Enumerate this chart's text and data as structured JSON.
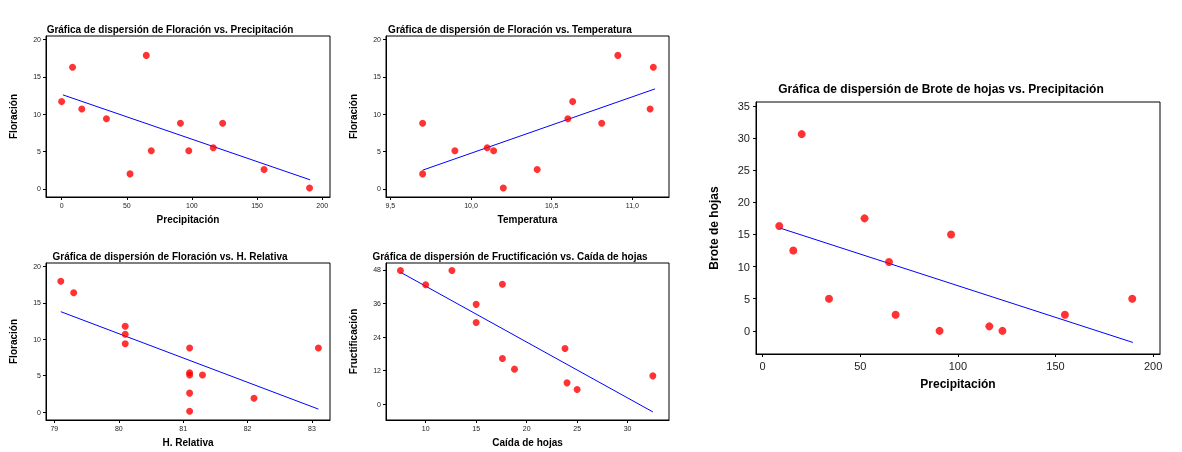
{
  "chart_data": [
    {
      "type": "scatter",
      "title": "Gráfica de dispersión de Floración vs. Precipitación",
      "xlabel": "Precipitación",
      "ylabel": "Floración",
      "xlim": [
        -12,
        206
      ],
      "ylim": [
        -1.1,
        20.5
      ],
      "xticks": [
        0,
        50,
        100,
        150,
        200
      ],
      "yticks": [
        0,
        5,
        10,
        15,
        20
      ],
      "marker": "circle",
      "series": [
        {
          "color": "#ff0000",
          "x": [
            0,
            8.4,
            15.5,
            34.4,
            52.5,
            65,
            68.8,
            91.2,
            97.6,
            116.4,
            123.6,
            155.4,
            190.3
          ],
          "values": [
            11.7,
            16.3,
            10.7,
            9.4,
            2.0,
            17.9,
            5.1,
            8.8,
            5.1,
            5.5,
            8.8,
            2.6,
            0.1
          ]
        },
        {
          "type": "line",
          "color": "#0000ff",
          "marker": "none",
          "x": [
            1,
            190.8
          ],
          "values": [
            12.6,
            1.2
          ]
        }
      ]
    },
    {
      "type": "scatter",
      "title": "Gráfica de dispersión de Floración vs. Temperatura",
      "xlabel": "Temperatura",
      "ylabel": "Floración",
      "xlim": [
        9.473,
        11.227
      ],
      "ylim": [
        -1.1,
        20.5
      ],
      "xticks": [
        {
          "value": 9.5,
          "label": "9,5"
        },
        {
          "value": 10,
          "label": "10,0"
        },
        {
          "value": 10.5,
          "label": "10,5"
        },
        {
          "value": 11,
          "label": "11,0"
        }
      ],
      "yticks": [
        0,
        5,
        10,
        15,
        20
      ],
      "marker": "circle",
      "series": [
        {
          "color": "#ff0000",
          "x": [
            9.7,
            9.7,
            9.9,
            10.1,
            10.14,
            10.2,
            10.41,
            10.6,
            10.63,
            10.81,
            10.91,
            11.11,
            11.13
          ],
          "values": [
            8.8,
            2.0,
            5.1,
            5.5,
            5.1,
            0.1,
            2.6,
            9.4,
            11.7,
            8.8,
            17.9,
            10.7,
            16.3
          ]
        },
        {
          "type": "line",
          "color": "#0000ff",
          "marker": "none",
          "x": [
            9.7,
            11.14
          ],
          "values": [
            2.5,
            13.4
          ]
        }
      ]
    },
    {
      "type": "scatter",
      "title": "Gráfica de dispersión de Floración vs. H. Relativa",
      "xlabel": "H. Relativa",
      "ylabel": "Floración",
      "xlim": [
        78.87,
        83.28
      ],
      "ylim": [
        -1.1,
        20.5
      ],
      "xticks": [
        79,
        80,
        81,
        82,
        83
      ],
      "yticks": [
        0,
        5,
        10,
        15,
        20
      ],
      "marker": "circle",
      "series": [
        {
          "color": "#ff0000",
          "x": [
            79.1,
            79.3,
            80.1,
            80.1,
            80.1,
            81.1,
            81.1,
            81.1,
            81.1,
            81.1,
            81.3,
            82.1,
            83.1
          ],
          "values": [
            18.0,
            16.4,
            11.8,
            10.7,
            9.4,
            8.8,
            5.4,
            5.1,
            2.6,
            0.1,
            5.1,
            1.9,
            8.8
          ]
        },
        {
          "type": "line",
          "color": "#0000ff",
          "marker": "none",
          "x": [
            79.1,
            83.1
          ],
          "values": [
            13.8,
            0.4
          ]
        }
      ]
    },
    {
      "type": "scatter",
      "title": "Gráfica de dispersión de Fructificación vs. Caída de hojas",
      "xlabel": "Caída de hojas",
      "ylabel": "Fructificación",
      "xlim": [
        6.07,
        34.1
      ],
      "ylim": [
        -5.7,
        50.5
      ],
      "xticks": [
        10,
        15,
        20,
        25,
        30
      ],
      "yticks": [
        0,
        12,
        24,
        36,
        48
      ],
      "marker": "circle",
      "series": [
        {
          "color": "#ff0000",
          "x": [
            7.5,
            10.0,
            12.6,
            15.0,
            15.0,
            17.6,
            17.6,
            18.8,
            23.8,
            24.0,
            25.0,
            32.5
          ],
          "values": [
            47.8,
            42.7,
            47.8,
            35.7,
            29.2,
            42.9,
            16.3,
            12.5,
            19.9,
            7.6,
            5.2,
            10.1
          ]
        },
        {
          "type": "line",
          "color": "#0000ff",
          "marker": "none",
          "x": [
            7.5,
            32.5
          ],
          "values": [
            47.2,
            -2.8
          ]
        }
      ]
    },
    {
      "type": "scatter",
      "title": "Gráfica de dispersión de Brote de hojas vs. Precipitación",
      "xlabel": "Precipitación",
      "ylabel": "Brote de hojas",
      "xlim": [
        -3.4,
        203.5
      ],
      "ylim": [
        -3.6,
        35.6
      ],
      "xticks": [
        0,
        50,
        100,
        150,
        200
      ],
      "yticks": [
        0,
        5,
        10,
        15,
        20,
        25,
        30,
        35
      ],
      "marker": "circle",
      "series": [
        {
          "color": "#ff0000",
          "x": [
            8.5,
            15.7,
            20.0,
            34.0,
            52.2,
            64.7,
            68.1,
            90.6,
            96.5,
            116.1,
            122.8,
            154.8,
            189.3
          ],
          "values": [
            16.3,
            12.5,
            30.6,
            5.0,
            17.5,
            10.7,
            2.5,
            0,
            15.0,
            0.7,
            0,
            2.5,
            5.0
          ]
        },
        {
          "type": "line",
          "color": "#0000ff",
          "marker": "none",
          "x": [
            8.8,
            189.6
          ],
          "values": [
            16.0,
            -1.8
          ]
        }
      ]
    }
  ]
}
